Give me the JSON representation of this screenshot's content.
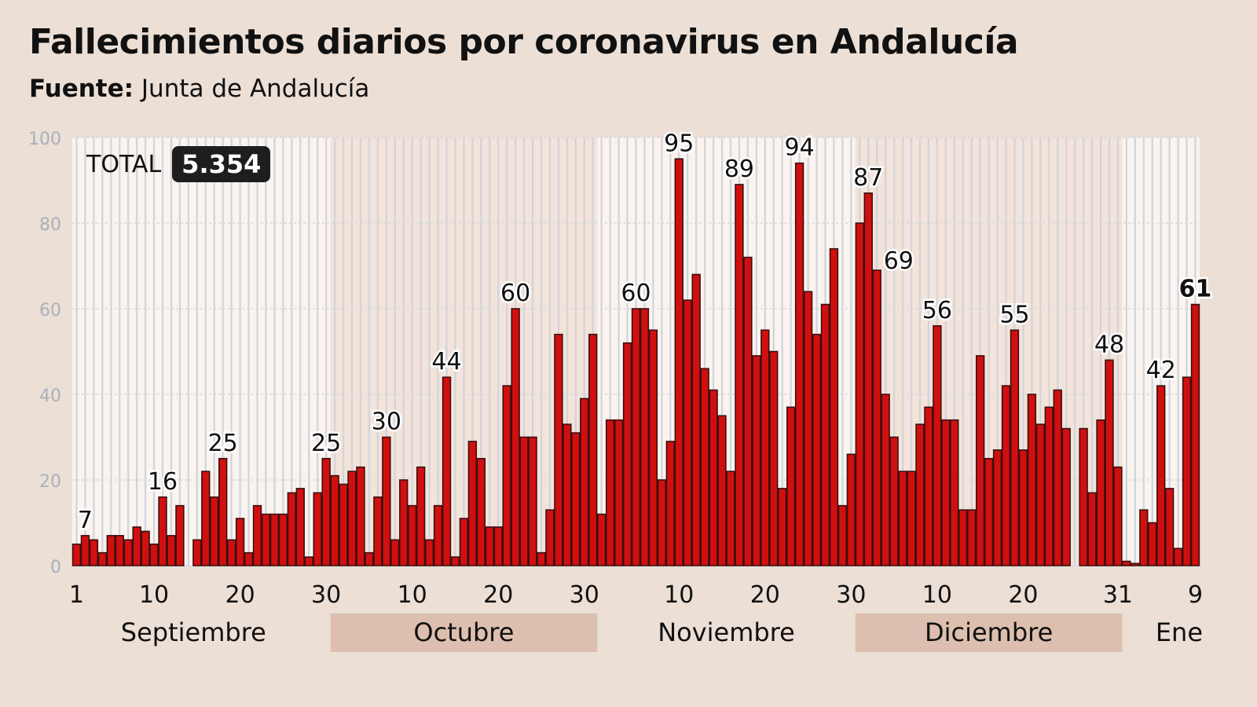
{
  "title": "Fallecimientos diarios por coronavirus en Andalucía",
  "source": {
    "label": "Fuente:",
    "value": "Junta de Andalucía"
  },
  "total": {
    "label": "TOTAL",
    "value": "5.354"
  },
  "colors": {
    "bar": "#d20f0f",
    "bar_outline": "#3a1010",
    "background": "#ecdfd5",
    "plot_light": "#faf3ee",
    "plot_shaded": "#f3e3d9",
    "month_box": "#dcbfae",
    "total_badge": "#1e1e1e"
  },
  "chart_data": {
    "type": "bar",
    "title": "Fallecimientos diarios por coronavirus en Andalucía",
    "xlabel": "",
    "ylabel": "",
    "ylim": [
      0,
      100
    ],
    "yticks": [
      "0",
      "20",
      "40",
      "60",
      "80",
      "100"
    ],
    "grid": true,
    "months": [
      {
        "label": "Septiembre",
        "shaded": false,
        "values": [
          5,
          7,
          6,
          3,
          7,
          7,
          6,
          9,
          8,
          5,
          16,
          7,
          14,
          0,
          6,
          22,
          16,
          25,
          6,
          11,
          3,
          14,
          12,
          12,
          12,
          17,
          18,
          2,
          17,
          25
        ]
      },
      {
        "label": "Octubre",
        "shaded": true,
        "values": [
          21,
          19,
          22,
          23,
          3,
          16,
          30,
          6,
          20,
          14,
          23,
          6,
          14,
          44,
          2,
          11,
          29,
          25,
          9,
          9,
          42,
          60,
          30,
          30,
          3,
          13,
          54,
          33,
          31,
          39,
          54
        ]
      },
      {
        "label": "Noviembre",
        "shaded": false,
        "values": [
          12,
          34,
          34,
          52,
          60,
          60,
          55,
          20,
          29,
          95,
          62,
          68,
          46,
          41,
          35,
          22,
          89,
          72,
          49,
          55,
          50,
          18,
          37,
          94,
          64,
          54,
          61,
          74,
          14,
          26
        ]
      },
      {
        "label": "Diciembre",
        "shaded": true,
        "values": [
          80,
          87,
          69,
          40,
          30,
          22,
          22,
          33,
          37,
          56,
          34,
          34,
          13,
          13,
          49,
          25,
          27,
          42,
          55,
          27,
          40,
          33,
          37,
          41,
          32,
          0,
          32,
          17,
          34,
          48,
          23
        ]
      },
      {
        "label": "Ene",
        "shaded": false,
        "values": [
          1,
          0.5,
          13,
          10,
          42,
          18,
          4,
          44,
          61
        ]
      }
    ],
    "xticks": [
      {
        "month": 0,
        "day": 1,
        "label": "1"
      },
      {
        "month": 0,
        "day": 10,
        "label": "10"
      },
      {
        "month": 0,
        "day": 20,
        "label": "20"
      },
      {
        "month": 0,
        "day": 30,
        "label": "30"
      },
      {
        "month": 1,
        "day": 10,
        "label": "10"
      },
      {
        "month": 1,
        "day": 20,
        "label": "20"
      },
      {
        "month": 1,
        "day": 30,
        "label": "30"
      },
      {
        "month": 2,
        "day": 10,
        "label": "10"
      },
      {
        "month": 2,
        "day": 20,
        "label": "20"
      },
      {
        "month": 2,
        "day": 30,
        "label": "30"
      },
      {
        "month": 3,
        "day": 10,
        "label": "10"
      },
      {
        "month": 3,
        "day": 20,
        "label": "20"
      },
      {
        "month": 3,
        "day": 31,
        "label": "31"
      },
      {
        "month": 4,
        "day": 9,
        "label": "9"
      }
    ],
    "data_labels": [
      {
        "month": 0,
        "day": 2,
        "label": "7"
      },
      {
        "month": 0,
        "day": 11,
        "label": "16"
      },
      {
        "month": 0,
        "day": 18,
        "label": "25"
      },
      {
        "month": 0,
        "day": 30,
        "label": "25"
      },
      {
        "month": 1,
        "day": 7,
        "label": "30"
      },
      {
        "month": 1,
        "day": 14,
        "label": "44"
      },
      {
        "month": 1,
        "day": 22,
        "label": "60"
      },
      {
        "month": 2,
        "day": 5,
        "label": "60"
      },
      {
        "month": 2,
        "day": 10,
        "label": "95"
      },
      {
        "month": 2,
        "day": 17,
        "label": "89"
      },
      {
        "month": 2,
        "day": 24,
        "label": "94"
      },
      {
        "month": 3,
        "day": 2,
        "label": "87"
      },
      {
        "month": 3,
        "day": 3,
        "label": "69",
        "side": "right"
      },
      {
        "month": 3,
        "day": 10,
        "label": "56"
      },
      {
        "month": 3,
        "day": 19,
        "label": "55"
      },
      {
        "month": 3,
        "day": 30,
        "label": "48"
      },
      {
        "month": 4,
        "day": 5,
        "label": "42"
      },
      {
        "month": 4,
        "day": 9,
        "label": "61",
        "bold": true
      }
    ]
  }
}
